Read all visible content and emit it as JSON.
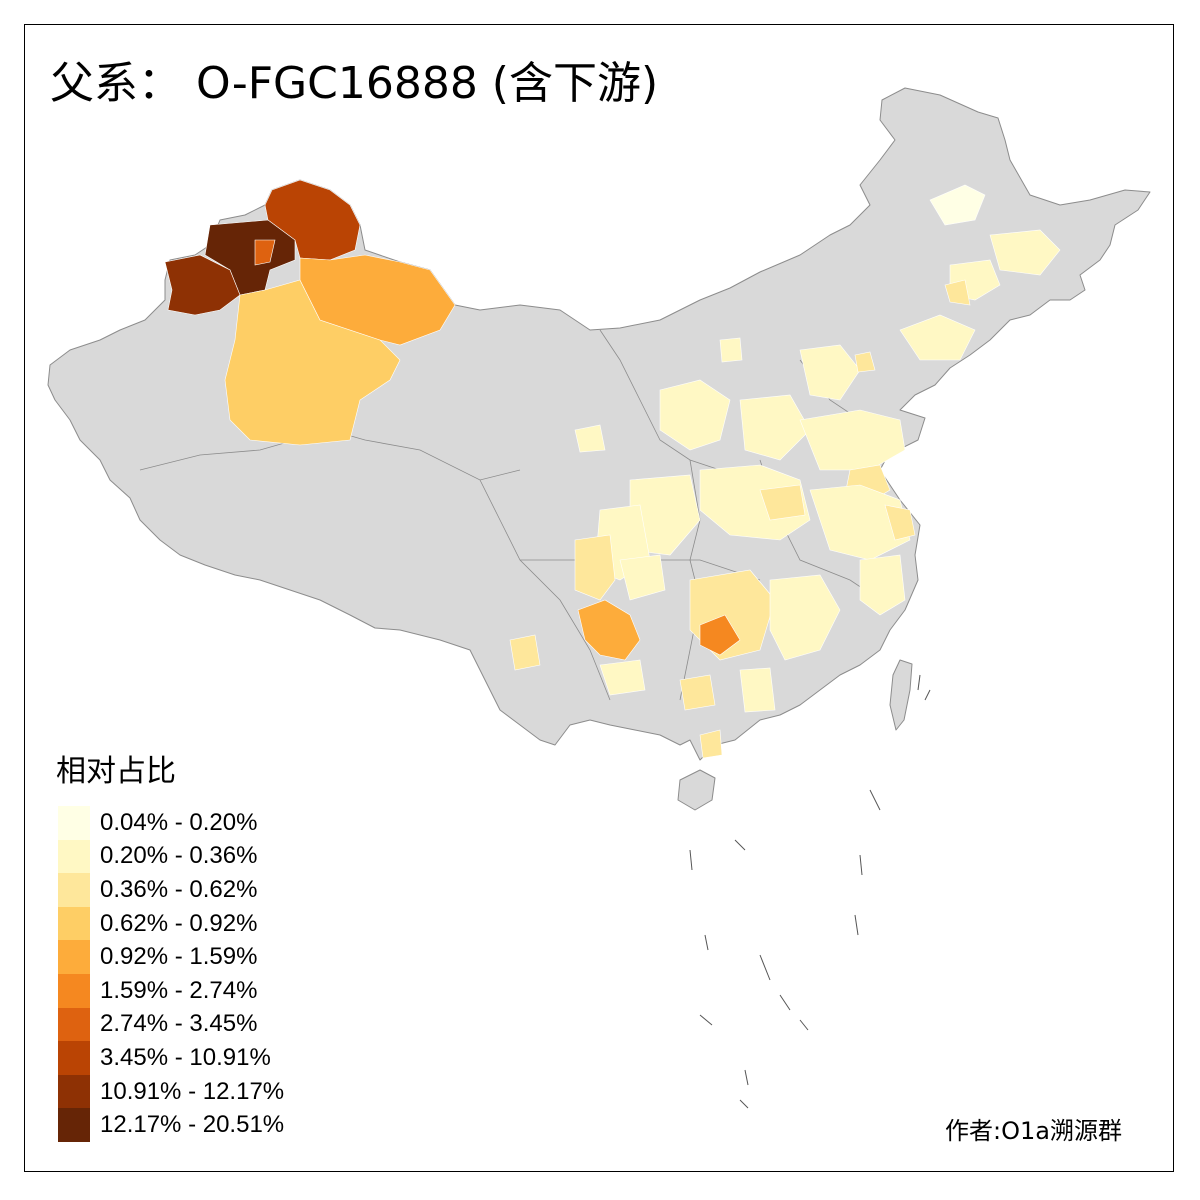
{
  "title": "父系： O-FGC16888 (含下游)",
  "legend": {
    "title": "相对占比",
    "classes": [
      {
        "label": "0.04% - 0.20%",
        "color": "#ffffe5"
      },
      {
        "label": "0.20% - 0.36%",
        "color": "#fff8c4"
      },
      {
        "label": "0.36% - 0.62%",
        "color": "#fee79b"
      },
      {
        "label": "0.62% - 0.92%",
        "color": "#fece65"
      },
      {
        "label": "0.92% - 1.59%",
        "color": "#fdac3b"
      },
      {
        "label": "1.59% - 2.74%",
        "color": "#f58820"
      },
      {
        "label": "2.74% - 3.45%",
        "color": "#de6210"
      },
      {
        "label": "3.45% - 10.91%",
        "color": "#ba4404"
      },
      {
        "label": "10.91% - 12.17%",
        "color": "#8e3104"
      },
      {
        "label": "12.17% - 20.51%",
        "color": "#662506"
      }
    ]
  },
  "no_data_color": "#d9d9d9",
  "author": "作者:O1a溯源群"
}
